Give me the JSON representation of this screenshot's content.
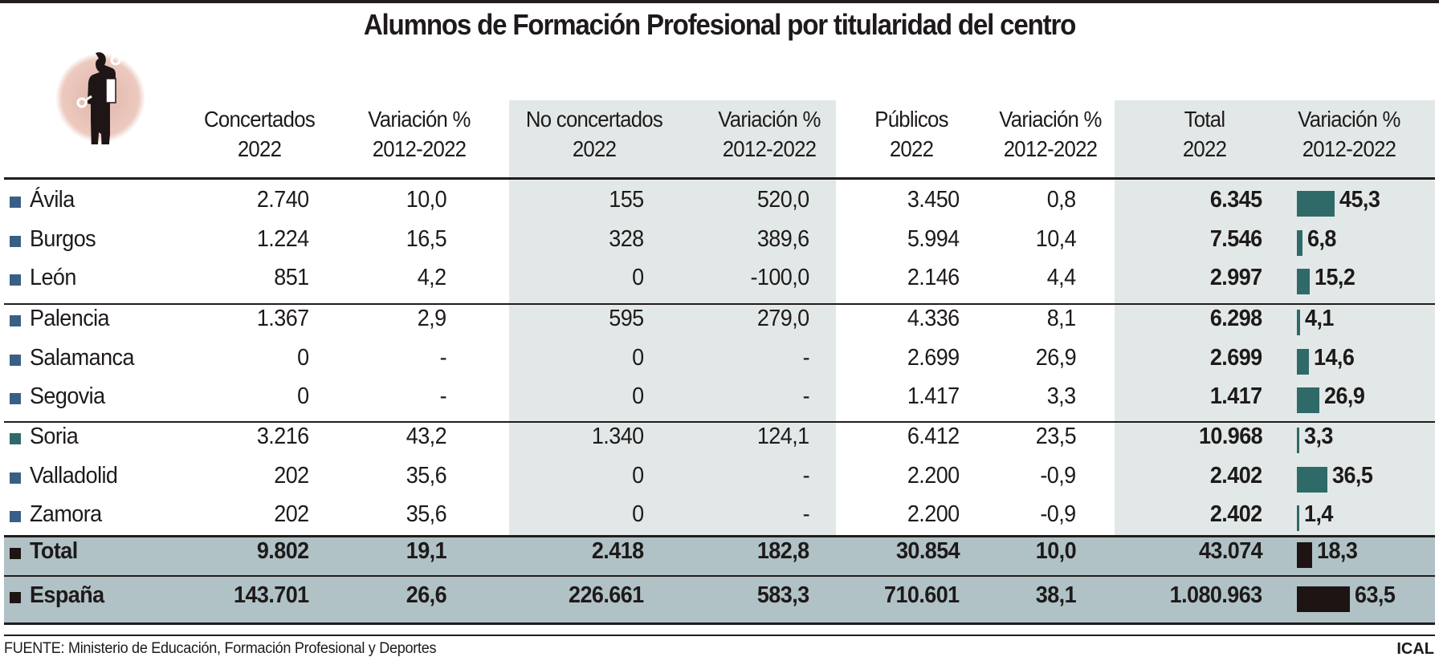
{
  "title": "Alumnos de Formación Profesional por titularidad del centro",
  "icon": "worker-with-wrenches-icon",
  "colors": {
    "province_square": "#3a5f86",
    "soria_square": "#2f6a68",
    "bar": "#2f6a68",
    "summary_bar": "#1e1414",
    "shaded_column": "#e2e8e8",
    "summary_row": "#b0c2c6",
    "icon_circle": "#e6c3b8"
  },
  "headers": [
    {
      "line1": "Concertados",
      "line2": "2022"
    },
    {
      "line1": "Variación %",
      "line2": "2012-2022"
    },
    {
      "line1": "No concertados",
      "line2": "2022"
    },
    {
      "line1": "Variación %",
      "line2": "2012-2022"
    },
    {
      "line1": "Públicos",
      "line2": "2022"
    },
    {
      "line1": "Variación %",
      "line2": "2012-2022"
    },
    {
      "line1": "Total",
      "line2": "2022"
    },
    {
      "line1": "Variación %",
      "line2": "2012-2022"
    }
  ],
  "rows": [
    {
      "name": "Ávila",
      "concertados": "2.740",
      "var_conc": "10,0",
      "no_conc": "155",
      "var_no_conc": "520,0",
      "publicos": "3.450",
      "var_pub": "0,8",
      "total": "6.345",
      "var_total": "45,3"
    },
    {
      "name": "Burgos",
      "concertados": "1.224",
      "var_conc": "16,5",
      "no_conc": "328",
      "var_no_conc": "389,6",
      "publicos": "5.994",
      "var_pub": "10,4",
      "total": "7.546",
      "var_total": "6,8"
    },
    {
      "name": "León",
      "concertados": "851",
      "var_conc": "4,2",
      "no_conc": "0",
      "var_no_conc": "-100,0",
      "publicos": "2.146",
      "var_pub": "4,4",
      "total": "2.997",
      "var_total": "15,2"
    },
    {
      "name": "Palencia",
      "concertados": "1.367",
      "var_conc": "2,9",
      "no_conc": "595",
      "var_no_conc": "279,0",
      "publicos": "4.336",
      "var_pub": "8,1",
      "total": "6.298",
      "var_total": "4,1"
    },
    {
      "name": "Salamanca",
      "concertados": "0",
      "var_conc": "-",
      "no_conc": "0",
      "var_no_conc": "-",
      "publicos": "2.699",
      "var_pub": "26,9",
      "total": "2.699",
      "var_total": "14,6"
    },
    {
      "name": "Segovia",
      "concertados": "0",
      "var_conc": "-",
      "no_conc": "0",
      "var_no_conc": "-",
      "publicos": "1.417",
      "var_pub": "3,3",
      "total": "1.417",
      "var_total": "26,9"
    },
    {
      "name": "Soria",
      "concertados": "3.216",
      "var_conc": "43,2",
      "no_conc": "1.340",
      "var_no_conc": "124,1",
      "publicos": "6.412",
      "var_pub": "23,5",
      "total": "10.968",
      "var_total": "3,3"
    },
    {
      "name": "Valladolid",
      "concertados": "202",
      "var_conc": "35,6",
      "no_conc": "0",
      "var_no_conc": "-",
      "publicos": "2.200",
      "var_pub": "-0,9",
      "total": "2.402",
      "var_total": "36,5"
    },
    {
      "name": "Zamora",
      "concertados": "202",
      "var_conc": "35,6",
      "no_conc": "0",
      "var_no_conc": "-",
      "publicos": "2.200",
      "var_pub": "-0,9",
      "total": "2.402",
      "var_total": "1,4"
    }
  ],
  "summary": [
    {
      "name": "Total",
      "concertados": "9.802",
      "var_conc": "19,1",
      "no_conc": "2.418",
      "var_no_conc": "182,8",
      "publicos": "30.854",
      "var_pub": "10,0",
      "total": "43.074",
      "var_total": "18,3"
    },
    {
      "name": "España",
      "concertados": "143.701",
      "var_conc": "26,6",
      "no_conc": "226.661",
      "var_no_conc": "583,3",
      "publicos": "710.601",
      "var_pub": "38,1",
      "total": "1.080.963",
      "var_total": "63,5"
    }
  ],
  "footer": {
    "source": "FUENTE: Ministerio de Educación, Formación Profesional y Deportes",
    "brand": "ICAL"
  },
  "chart_data": {
    "type": "table",
    "title": "Alumnos de Formación Profesional por titularidad del centro",
    "columns": [
      "Concertados 2022",
      "Variación % 2012-2022",
      "No concertados 2022",
      "Variación % 2012-2022",
      "Públicos 2022",
      "Variación % 2012-2022",
      "Total 2022",
      "Variación % 2012-2022"
    ],
    "categories": [
      "Ávila",
      "Burgos",
      "León",
      "Palencia",
      "Salamanca",
      "Segovia",
      "Soria",
      "Valladolid",
      "Zamora",
      "Total",
      "España"
    ],
    "series": [
      {
        "name": "Concertados 2022",
        "values": [
          2740,
          1224,
          851,
          1367,
          0,
          0,
          3216,
          202,
          202,
          9802,
          143701
        ]
      },
      {
        "name": "Variación % concertados 2012-2022",
        "values": [
          10.0,
          16.5,
          4.2,
          2.9,
          null,
          null,
          43.2,
          35.6,
          35.6,
          19.1,
          26.6
        ]
      },
      {
        "name": "No concertados 2022",
        "values": [
          155,
          328,
          0,
          595,
          0,
          0,
          1340,
          0,
          0,
          2418,
          226661
        ]
      },
      {
        "name": "Variación % no concertados 2012-2022",
        "values": [
          520.0,
          389.6,
          -100.0,
          279.0,
          null,
          null,
          124.1,
          null,
          null,
          182.8,
          583.3
        ]
      },
      {
        "name": "Públicos 2022",
        "values": [
          3450,
          5994,
          2146,
          4336,
          2699,
          1417,
          6412,
          2200,
          2200,
          30854,
          710601
        ]
      },
      {
        "name": "Variación % públicos 2012-2022",
        "values": [
          0.8,
          10.4,
          4.4,
          8.1,
          26.9,
          3.3,
          23.5,
          -0.9,
          -0.9,
          10.0,
          38.1
        ]
      },
      {
        "name": "Total 2022",
        "values": [
          6345,
          7546,
          2997,
          6298,
          2699,
          1417,
          10968,
          2402,
          2402,
          43074,
          1080963
        ]
      },
      {
        "name": "Variación % total 2012-2022 (bars)",
        "values": [
          45.3,
          6.8,
          15.2,
          4.1,
          14.6,
          26.9,
          3.3,
          36.5,
          1.4,
          18.3,
          63.5
        ]
      }
    ],
    "source": "Ministerio de Educación, Formación Profesional y Deportes"
  }
}
